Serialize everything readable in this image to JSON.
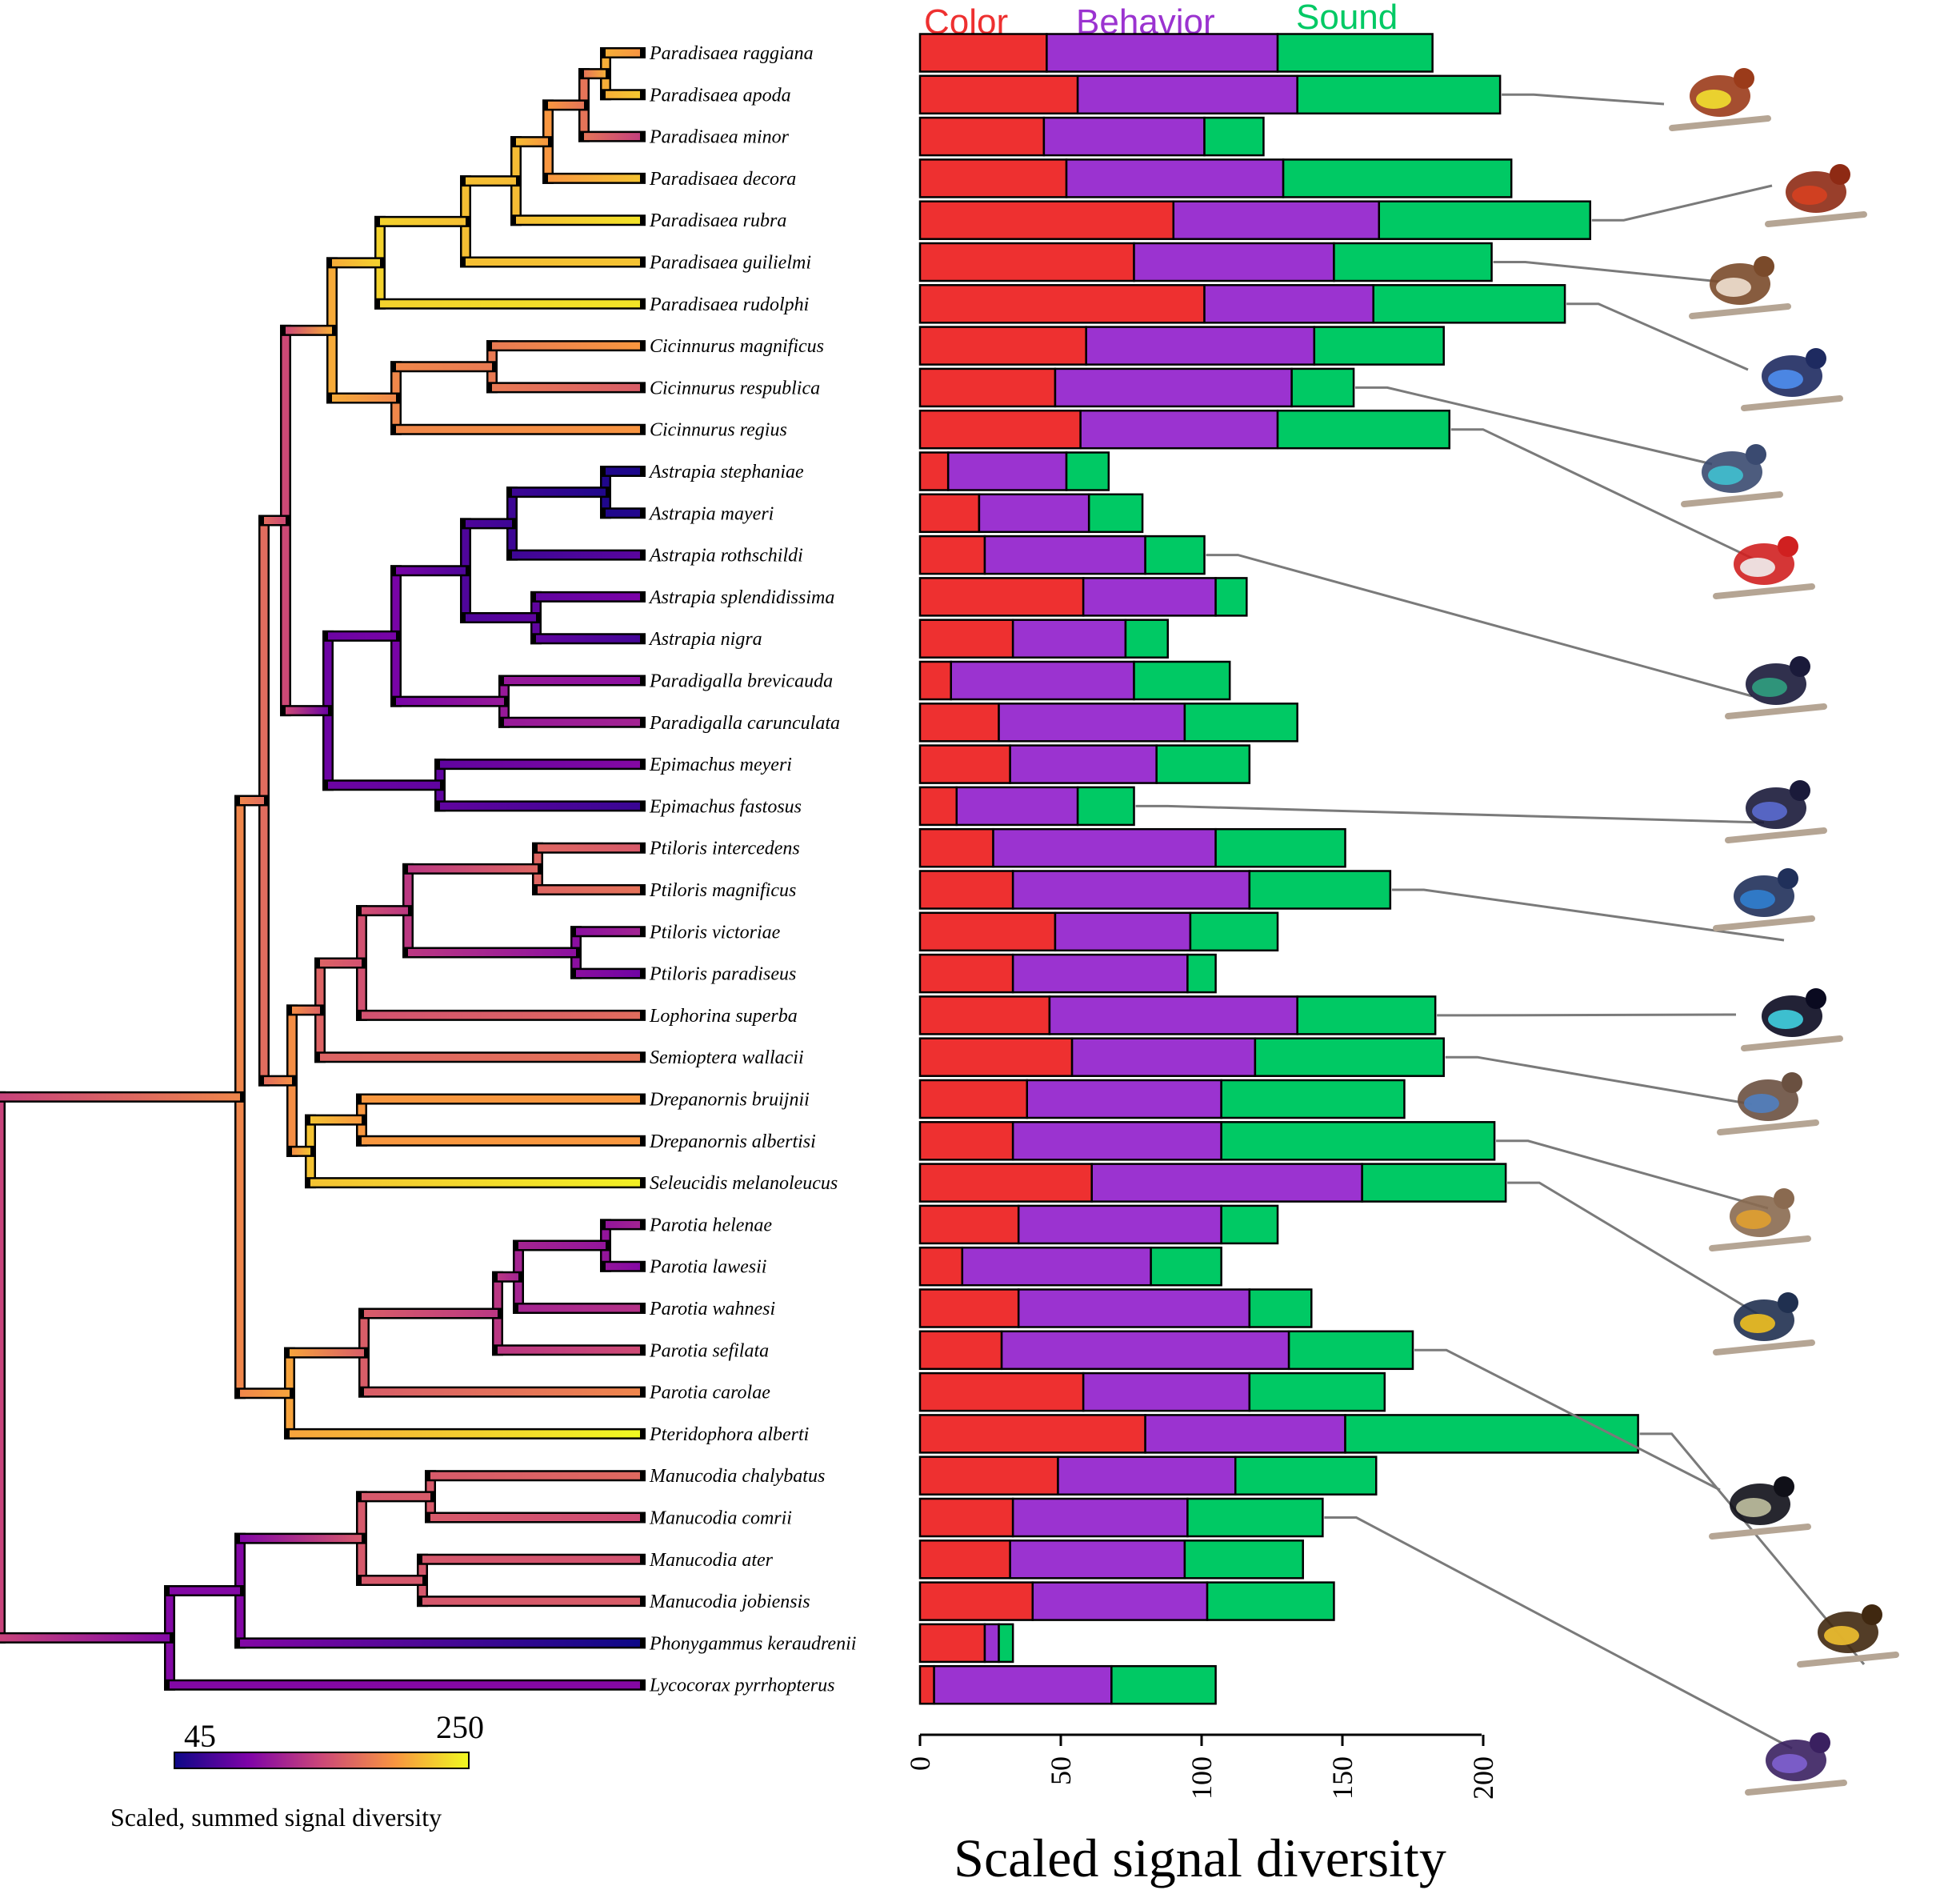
{
  "chart_data": {
    "type": "bar",
    "subtype": "horizontal-stacked",
    "xlabel": "Scaled signal diversity",
    "xlim": [
      0,
      200
    ],
    "xticks": [
      "0",
      "50",
      "100",
      "150",
      "200"
    ],
    "grid": false,
    "legend_position": "top",
    "series": [
      {
        "name": "Color",
        "color": "#ee3030"
      },
      {
        "name": "Behavior",
        "color": "#9b33d0"
      },
      {
        "name": "Sound",
        "color": "#00c964"
      }
    ],
    "categories": [
      "Paradisaea raggiana",
      "Paradisaea apoda",
      "Paradisaea minor",
      "Paradisaea decora",
      "Paradisaea rubra",
      "Paradisaea guilielmi",
      "Paradisaea rudolphi",
      "Cicinnurus magnificus",
      "Cicinnurus respublica",
      "Cicinnurus regius",
      "Astrapia stephaniae",
      "Astrapia mayeri",
      "Astrapia rothschildi",
      "Astrapia splendidissima",
      "Astrapia nigra",
      "Paradigalla brevicauda",
      "Paradigalla carunculata",
      "Epimachus meyeri",
      "Epimachus fastosus",
      "Ptiloris intercedens",
      "Ptiloris magnificus",
      "Ptiloris victoriae",
      "Ptiloris paradiseus",
      "Lophorina superba",
      "Semioptera wallacii",
      "Drepanornis bruijnii",
      "Drepanornis albertisi",
      "Seleucidis melanoleucus",
      "Parotia helenae",
      "Parotia lawesii",
      "Parotia wahnesi",
      "Parotia sefilata",
      "Parotia carolae",
      "Pteridophora alberti",
      "Manucodia chalybatus",
      "Manucodia comrii",
      "Manucodia ater",
      "Manucodia jobiensis",
      "Phonygammus keraudrenii",
      "Lycocorax pyrrhopterus"
    ],
    "values": {
      "Color": [
        45,
        56,
        44,
        52,
        90,
        76,
        101,
        59,
        48,
        57,
        10,
        21,
        23,
        58,
        33,
        11,
        28,
        32,
        13,
        26,
        33,
        48,
        33,
        46,
        54,
        38,
        33,
        61,
        35,
        15,
        35,
        29,
        58,
        80,
        49,
        33,
        32,
        40,
        23,
        5
      ],
      "Behavior": [
        82,
        78,
        57,
        77,
        73,
        71,
        60,
        81,
        84,
        70,
        42,
        39,
        57,
        47,
        40,
        65,
        66,
        52,
        43,
        79,
        84,
        48,
        62,
        88,
        65,
        69,
        74,
        96,
        72,
        67,
        82,
        102,
        59,
        71,
        63,
        62,
        62,
        62,
        5,
        63
      ],
      "Sound": [
        55,
        72,
        21,
        81,
        75,
        56,
        68,
        46,
        22,
        61,
        15,
        19,
        21,
        11,
        15,
        34,
        40,
        33,
        20,
        46,
        50,
        31,
        10,
        49,
        67,
        65,
        97,
        51,
        20,
        25,
        22,
        44,
        48,
        104,
        50,
        48,
        42,
        45,
        5,
        37
      ]
    }
  },
  "colorbar": {
    "min_label": "45",
    "max_label": "250",
    "title": "Scaled, summed signal diversity",
    "min": 45,
    "max": 250
  },
  "tree": {
    "description_type": "phylogeny",
    "tip_signal": [
      198,
      225,
      142,
      222,
      238,
      222,
      240,
      200,
      162,
      198,
      52,
      55,
      80,
      95,
      70,
      105,
      120,
      100,
      65,
      160,
      176,
      120,
      90,
      172,
      178,
      200,
      200,
      245,
      120,
      100,
      132,
      150,
      188,
      250,
      170,
      150,
      155,
      162,
      40,
      100
    ]
  }
}
